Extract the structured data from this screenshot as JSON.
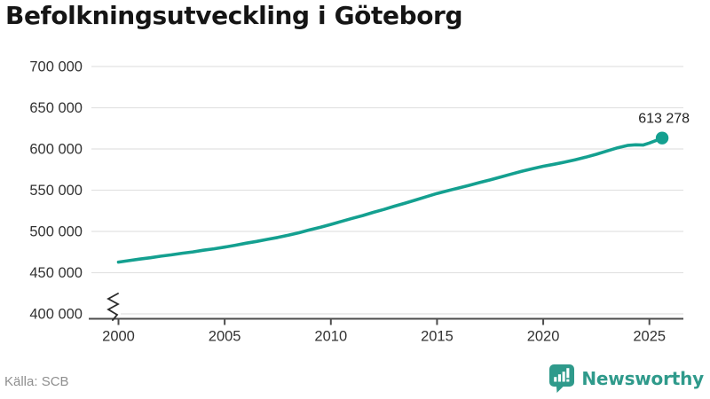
{
  "page": {
    "title": "Befolkningsutveckling i Göteborg",
    "source": "Källa: SCB",
    "brand": {
      "name": "Newsworthy",
      "color": "#2f9a8b"
    }
  },
  "chart_data": {
    "type": "line",
    "title": "Befolkningsutveckling i Göteborg",
    "line_color": "#14a090",
    "grid_color": "#e2e2e2",
    "axis_color": "#4d4d4d",
    "tick_text_color": "#333333",
    "end_label_color": "#1f1f1f",
    "grid": "horizontal",
    "legend_position": "none",
    "axis_break": true,
    "xlim": [
      1998.6,
      2026.6
    ],
    "ylim": [
      400000,
      700000
    ],
    "x_ticks": [
      {
        "value": 2000,
        "label": "2000"
      },
      {
        "value": 2005,
        "label": "2005"
      },
      {
        "value": 2010,
        "label": "2010"
      },
      {
        "value": 2015,
        "label": "2015"
      },
      {
        "value": 2020,
        "label": "2020"
      },
      {
        "value": 2025,
        "label": "2025"
      }
    ],
    "y_ticks": [
      {
        "value": 400000,
        "label": "400 000"
      },
      {
        "value": 450000,
        "label": "450 000"
      },
      {
        "value": 500000,
        "label": "500 000"
      },
      {
        "value": 550000,
        "label": "550 000"
      },
      {
        "value": 600000,
        "label": "600 000"
      },
      {
        "value": 650000,
        "label": "650 000"
      },
      {
        "value": 700000,
        "label": "700 000"
      }
    ],
    "end_label": "613 278",
    "end_value": 613278,
    "series": [
      {
        "name": "Befolkningsutveckling i Göteborg",
        "points": [
          [
            2000,
            462800
          ],
          [
            2000.5,
            464600
          ],
          [
            2001,
            466500
          ],
          [
            2001.5,
            468100
          ],
          [
            2002,
            470000
          ],
          [
            2002.5,
            471600
          ],
          [
            2003,
            473600
          ],
          [
            2003.5,
            475200
          ],
          [
            2004,
            477200
          ],
          [
            2004.5,
            478900
          ],
          [
            2005,
            481000
          ],
          [
            2005.5,
            483200
          ],
          [
            2006,
            485700
          ],
          [
            2006.5,
            487900
          ],
          [
            2007,
            490300
          ],
          [
            2007.5,
            492700
          ],
          [
            2008,
            495400
          ],
          [
            2008.5,
            498400
          ],
          [
            2009,
            501800
          ],
          [
            2009.5,
            505000
          ],
          [
            2010,
            508500
          ],
          [
            2010.5,
            512200
          ],
          [
            2011,
            515800
          ],
          [
            2011.5,
            519300
          ],
          [
            2012,
            523100
          ],
          [
            2012.5,
            526700
          ],
          [
            2013,
            530600
          ],
          [
            2013.5,
            534300
          ],
          [
            2014,
            538200
          ],
          [
            2014.5,
            542200
          ],
          [
            2015,
            546000
          ],
          [
            2015.5,
            549400
          ],
          [
            2016,
            552600
          ],
          [
            2016.5,
            555800
          ],
          [
            2017,
            559200
          ],
          [
            2017.5,
            562500
          ],
          [
            2018,
            566000
          ],
          [
            2018.5,
            569600
          ],
          [
            2019,
            573000
          ],
          [
            2019.5,
            576100
          ],
          [
            2020,
            579000
          ],
          [
            2020.5,
            581400
          ],
          [
            2021,
            584000
          ],
          [
            2021.5,
            586900
          ],
          [
            2022,
            590000
          ],
          [
            2022.5,
            593600
          ],
          [
            2023,
            597500
          ],
          [
            2023.5,
            601400
          ],
          [
            2024,
            604400
          ],
          [
            2024.35,
            605100
          ],
          [
            2024.7,
            604700
          ],
          [
            2025,
            607200
          ],
          [
            2025.3,
            610100
          ],
          [
            2025.6,
            613278
          ]
        ]
      }
    ]
  }
}
